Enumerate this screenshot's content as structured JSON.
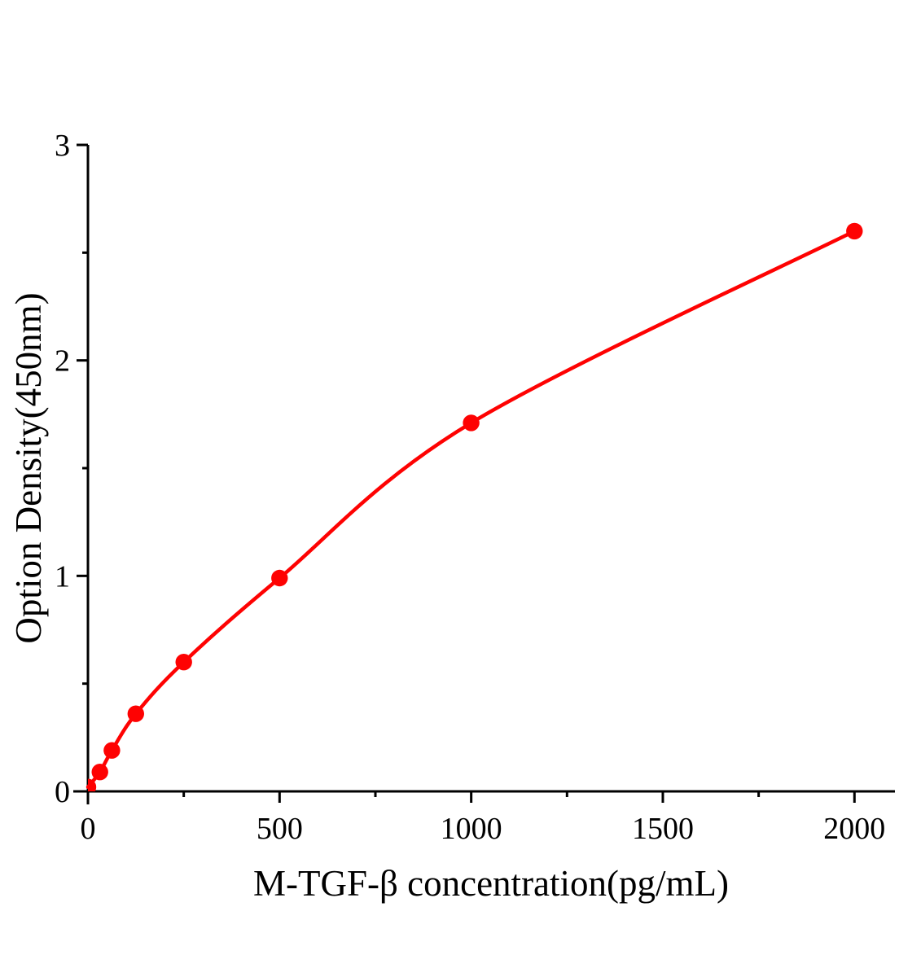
{
  "chart_data": {
    "type": "scatter",
    "x": [
      0,
      31.25,
      62.5,
      125,
      250,
      500,
      1000,
      2000
    ],
    "y": [
      0.02,
      0.09,
      0.19,
      0.36,
      0.6,
      0.99,
      1.71,
      2.6
    ],
    "xlabel": "M-TGF-β concentration(pg/mL)",
    "ylabel": "Option Density(450nm)",
    "xlim": [
      0,
      2000
    ],
    "ylim": [
      0,
      3
    ],
    "xticks": [
      0,
      500,
      1000,
      1500,
      2000
    ],
    "xticks_minor": [
      250,
      750,
      1250,
      1750
    ],
    "yticks": [
      0,
      1,
      2,
      3
    ],
    "yticks_minor": [
      0.5,
      1.5,
      2.5
    ],
    "grid": false,
    "legend": false,
    "curve_style": "smooth-fit-line-with-markers",
    "colors": {
      "curve": "#fe0202",
      "marker": "#fe0202",
      "axis": "#000000",
      "text": "#000000",
      "background": "#ffffff"
    }
  }
}
